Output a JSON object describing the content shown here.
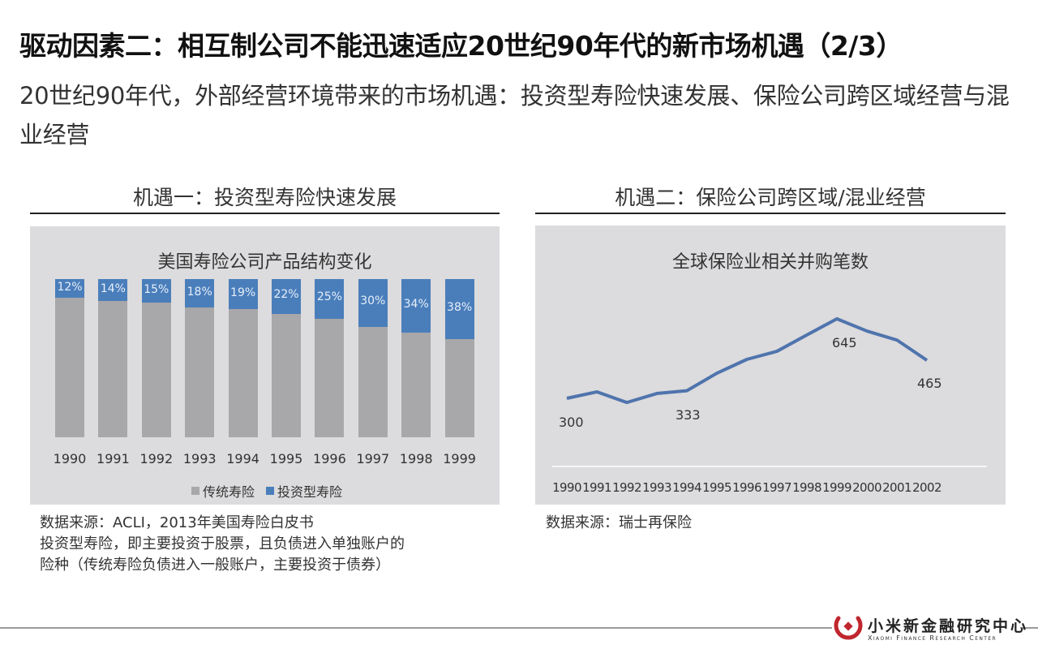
{
  "header": {
    "title": "驱动因素二：相互制公司不能迅速适应20世纪90年代的新市场机遇（2/3）",
    "subtitle": "20世纪90年代，外部经营环境带来的市场机遇：投资型寿险快速发展、保险公司跨区域经营与混业经营"
  },
  "left_section": {
    "heading": "机遇一：投资型寿险快速发展",
    "source_lines": [
      "数据来源：ACLI，2013年美国寿险白皮书",
      "投资型寿险，即主要投资于股票，且负债进入单独账户的",
      "险种（传统寿险负债进入一般账户，主要投资于债券）"
    ]
  },
  "right_section": {
    "heading": "机遇二：保险公司跨区域/混业经营",
    "source_lines": [
      "数据来源：瑞士再保险"
    ]
  },
  "colors": {
    "traditional": "#a8a7a9",
    "investment": "#4a7ebb",
    "line": "#4f74ad",
    "panel_bg": "#dcdbdd",
    "logo_red": "#c0262d"
  },
  "footer": {
    "logo_cn": "小米新金融研究中心",
    "logo_en": "Xiaomi Finance Research Center"
  },
  "chart_data": [
    {
      "type": "bar",
      "stacked": true,
      "percent_stacked": true,
      "title": "美国寿险公司产品结构变化",
      "xlabel": "",
      "ylabel": "",
      "ylim": [
        0,
        100
      ],
      "grid": false,
      "legend_position": "bottom",
      "categories": [
        "1990",
        "1991",
        "1992",
        "1993",
        "1994",
        "1995",
        "1996",
        "1997",
        "1998",
        "1999"
      ],
      "series": [
        {
          "name": "传统寿险",
          "values": [
            88,
            86,
            85,
            82,
            81,
            78,
            75,
            70,
            66,
            62
          ]
        },
        {
          "name": "投资型寿险",
          "values": [
            12,
            14,
            15,
            18,
            19,
            22,
            25,
            30,
            34,
            38
          ]
        }
      ],
      "data_labels": [
        "12%",
        "14%",
        "15%",
        "18%",
        "19%",
        "22%",
        "25%",
        "30%",
        "34%",
        "38%"
      ]
    },
    {
      "type": "line",
      "title": "全球保险业相关并购笔数",
      "xlabel": "",
      "ylabel": "",
      "grid": false,
      "legend_position": "none",
      "x": [
        "1990",
        "1991",
        "1992",
        "1993",
        "1994",
        "1995",
        "1996",
        "1997",
        "1998",
        "1999",
        "2000",
        "2001",
        "2002"
      ],
      "series": [
        {
          "name": "并购笔数",
          "values": [
            300,
            328,
            282,
            321,
            333,
            409,
            469,
            504,
            575,
            645,
            592,
            553,
            465
          ]
        }
      ],
      "annotations": [
        {
          "x": "1990",
          "label": "300"
        },
        {
          "x": "1994",
          "label": "333"
        },
        {
          "x": "1999",
          "label": "645"
        },
        {
          "x": "2002",
          "label": "465"
        }
      ]
    }
  ]
}
